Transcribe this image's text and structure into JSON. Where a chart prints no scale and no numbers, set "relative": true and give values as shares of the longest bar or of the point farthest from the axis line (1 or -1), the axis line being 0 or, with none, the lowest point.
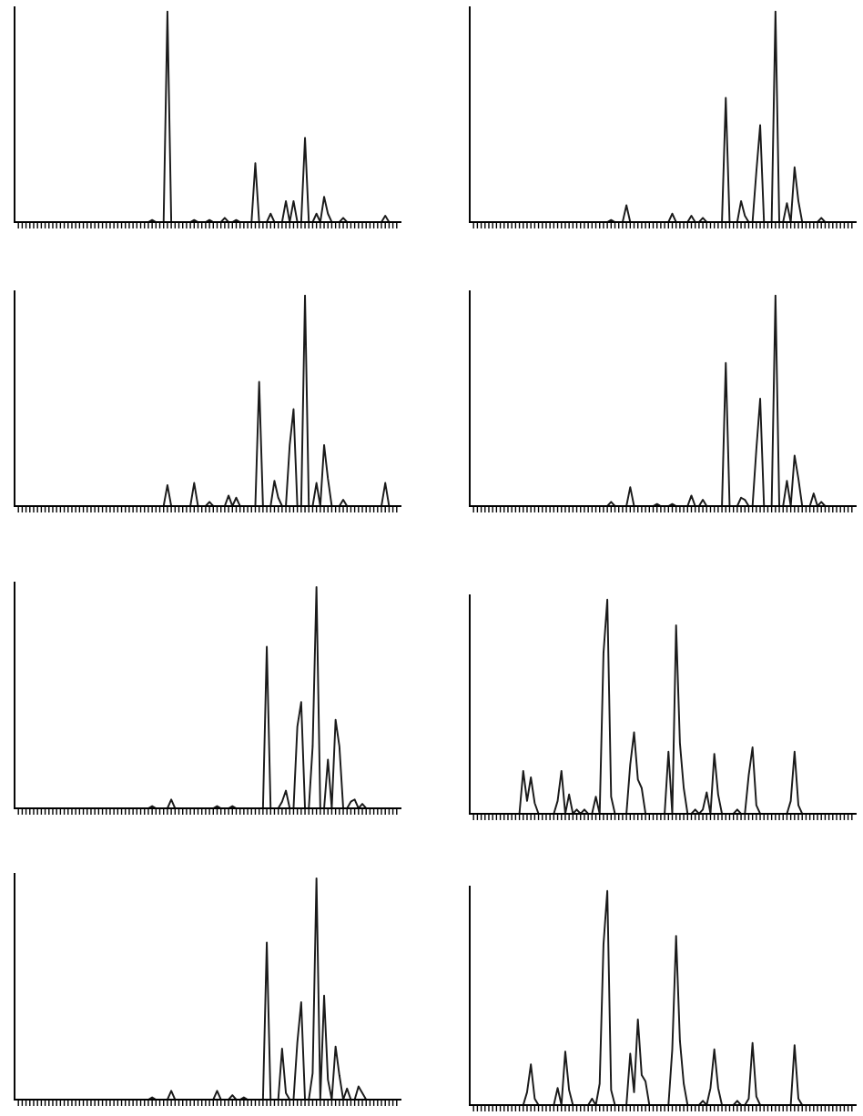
{
  "chart_data": [
    {
      "type": "line",
      "relative": true,
      "color": "#1a1a1a",
      "categories": [
        null,
        null,
        null,
        null,
        null,
        null,
        null,
        null,
        null,
        null,
        null,
        null,
        null,
        null,
        null,
        null,
        null,
        null,
        null,
        null,
        null,
        null,
        null,
        null,
        null,
        null,
        null,
        null,
        null,
        null,
        null,
        null,
        null,
        null,
        null,
        null,
        null,
        null,
        null,
        null,
        null,
        null,
        null,
        null,
        null,
        null,
        null,
        null,
        null,
        null,
        null,
        null,
        null,
        null,
        null,
        null,
        null,
        null,
        null,
        null,
        null,
        null,
        null,
        null,
        null,
        null,
        null,
        null,
        null,
        null,
        null,
        null,
        null,
        null,
        null,
        null,
        null,
        null,
        null,
        null,
        null,
        null,
        null,
        null,
        null,
        null,
        null,
        null,
        null,
        null,
        null,
        null,
        null,
        null,
        null,
        null,
        null,
        null,
        null,
        null
      ],
      "values": [
        0,
        0,
        0,
        0,
        0,
        0,
        0,
        0,
        0,
        0,
        0,
        0,
        0,
        0,
        0,
        0,
        0,
        0,
        0,
        0,
        0,
        0,
        0,
        0,
        0,
        0,
        0,
        0,
        0,
        0,
        0,
        0,
        0,
        0,
        0,
        0.01,
        0,
        0,
        0,
        1,
        0,
        0,
        0,
        0,
        0,
        0,
        0.01,
        0,
        0,
        0,
        0.01,
        0,
        0,
        0,
        0.02,
        0,
        0,
        0.01,
        0,
        0,
        0,
        0,
        0.28,
        0,
        0,
        0,
        0.04,
        0,
        0,
        0,
        0.1,
        0,
        0.1,
        0,
        0,
        0.4,
        0,
        0,
        0.04,
        0,
        0.12,
        0.04,
        0,
        0,
        0,
        0.02,
        0,
        0,
        0,
        0,
        0,
        0,
        0,
        0,
        0,
        0,
        0.03,
        0,
        0,
        0
      ]
    },
    {
      "type": "line",
      "relative": true,
      "color": "#1a1a1a",
      "categories": [
        null,
        null,
        null,
        null,
        null,
        null,
        null,
        null,
        null,
        null,
        null,
        null,
        null,
        null,
        null,
        null,
        null,
        null,
        null,
        null,
        null,
        null,
        null,
        null,
        null,
        null,
        null,
        null,
        null,
        null,
        null,
        null,
        null,
        null,
        null,
        null,
        null,
        null,
        null,
        null,
        null,
        null,
        null,
        null,
        null,
        null,
        null,
        null,
        null,
        null,
        null,
        null,
        null,
        null,
        null,
        null,
        null,
        null,
        null,
        null,
        null,
        null,
        null,
        null,
        null,
        null,
        null,
        null,
        null,
        null,
        null,
        null,
        null,
        null,
        null,
        null,
        null,
        null,
        null,
        null,
        null,
        null,
        null,
        null,
        null,
        null,
        null,
        null,
        null,
        null,
        null,
        null,
        null,
        null,
        null,
        null,
        null,
        null,
        null,
        null
      ],
      "values": [
        0,
        0,
        0,
        0,
        0,
        0,
        0,
        0,
        0,
        0,
        0,
        0,
        0,
        0,
        0,
        0,
        0,
        0,
        0,
        0,
        0,
        0,
        0,
        0,
        0,
        0,
        0,
        0,
        0,
        0,
        0,
        0,
        0,
        0,
        0,
        0,
        0.01,
        0,
        0,
        0,
        0.08,
        0,
        0,
        0,
        0,
        0,
        0,
        0,
        0,
        0,
        0,
        0,
        0.04,
        0,
        0,
        0,
        0,
        0.03,
        0,
        0,
        0.02,
        0,
        0,
        0,
        0,
        0,
        0.59,
        0,
        0,
        0,
        0.1,
        0.03,
        0,
        0,
        0.24,
        0.46,
        0,
        0,
        0,
        1,
        0,
        0,
        0.09,
        0,
        0.26,
        0.1,
        0,
        0,
        0,
        0,
        0,
        0.02,
        0,
        0,
        0,
        0,
        0,
        0,
        0,
        0
      ]
    },
    {
      "type": "line",
      "relative": true,
      "color": "#1a1a1a",
      "categories": [
        null,
        null,
        null,
        null,
        null,
        null,
        null,
        null,
        null,
        null,
        null,
        null,
        null,
        null,
        null,
        null,
        null,
        null,
        null,
        null,
        null,
        null,
        null,
        null,
        null,
        null,
        null,
        null,
        null,
        null,
        null,
        null,
        null,
        null,
        null,
        null,
        null,
        null,
        null,
        null,
        null,
        null,
        null,
        null,
        null,
        null,
        null,
        null,
        null,
        null,
        null,
        null,
        null,
        null,
        null,
        null,
        null,
        null,
        null,
        null,
        null,
        null,
        null,
        null,
        null,
        null,
        null,
        null,
        null,
        null,
        null,
        null,
        null,
        null,
        null,
        null,
        null,
        null,
        null,
        null,
        null,
        null,
        null,
        null,
        null,
        null,
        null,
        null,
        null,
        null,
        null,
        null,
        null,
        null,
        null,
        null,
        null,
        null,
        null,
        null
      ],
      "values": [
        0,
        0,
        0,
        0,
        0,
        0,
        0,
        0,
        0,
        0,
        0,
        0,
        0,
        0,
        0,
        0,
        0,
        0,
        0,
        0,
        0,
        0,
        0,
        0,
        0,
        0,
        0,
        0,
        0,
        0,
        0,
        0,
        0,
        0,
        0,
        0,
        0,
        0,
        0,
        0.1,
        0,
        0,
        0,
        0,
        0,
        0,
        0.11,
        0,
        0,
        0,
        0.02,
        0,
        0,
        0,
        0,
        0.05,
        0,
        0.04,
        0,
        0,
        0,
        0,
        0,
        0.59,
        0,
        0,
        0,
        0.12,
        0.04,
        0,
        0,
        0.29,
        0.46,
        0,
        0,
        1,
        0,
        0,
        0.11,
        0,
        0.29,
        0.13,
        0,
        0,
        0,
        0.03,
        0,
        0,
        0,
        0,
        0,
        0,
        0,
        0,
        0,
        0,
        0.11,
        0,
        0,
        0
      ]
    },
    {
      "type": "line",
      "relative": true,
      "color": "#1a1a1a",
      "categories": [
        null,
        null,
        null,
        null,
        null,
        null,
        null,
        null,
        null,
        null,
        null,
        null,
        null,
        null,
        null,
        null,
        null,
        null,
        null,
        null,
        null,
        null,
        null,
        null,
        null,
        null,
        null,
        null,
        null,
        null,
        null,
        null,
        null,
        null,
        null,
        null,
        null,
        null,
        null,
        null,
        null,
        null,
        null,
        null,
        null,
        null,
        null,
        null,
        null,
        null,
        null,
        null,
        null,
        null,
        null,
        null,
        null,
        null,
        null,
        null,
        null,
        null,
        null,
        null,
        null,
        null,
        null,
        null,
        null,
        null,
        null,
        null,
        null,
        null,
        null,
        null,
        null,
        null,
        null,
        null,
        null,
        null,
        null,
        null,
        null,
        null,
        null,
        null,
        null,
        null,
        null,
        null,
        null,
        null,
        null,
        null,
        null,
        null,
        null,
        null
      ],
      "values": [
        0,
        0,
        0,
        0,
        0,
        0,
        0,
        0,
        0,
        0,
        0,
        0,
        0,
        0,
        0,
        0,
        0,
        0,
        0,
        0,
        0,
        0,
        0,
        0,
        0,
        0,
        0,
        0,
        0,
        0,
        0,
        0,
        0,
        0,
        0,
        0,
        0.02,
        0,
        0,
        0,
        0,
        0.09,
        0,
        0,
        0,
        0,
        0,
        0,
        0.01,
        0,
        0,
        0,
        0.01,
        0,
        0,
        0,
        0,
        0.05,
        0,
        0,
        0.03,
        0,
        0,
        0,
        0,
        0,
        0.68,
        0,
        0,
        0,
        0.04,
        0.03,
        0,
        0,
        0.27,
        0.51,
        0,
        0,
        0,
        1,
        0,
        0,
        0.12,
        0,
        0.24,
        0.13,
        0,
        0,
        0,
        0.06,
        0,
        0.02,
        0,
        0,
        0,
        0,
        0,
        0,
        0,
        0
      ]
    },
    {
      "type": "line",
      "relative": true,
      "color": "#1a1a1a",
      "categories": [
        null,
        null,
        null,
        null,
        null,
        null,
        null,
        null,
        null,
        null,
        null,
        null,
        null,
        null,
        null,
        null,
        null,
        null,
        null,
        null,
        null,
        null,
        null,
        null,
        null,
        null,
        null,
        null,
        null,
        null,
        null,
        null,
        null,
        null,
        null,
        null,
        null,
        null,
        null,
        null,
        null,
        null,
        null,
        null,
        null,
        null,
        null,
        null,
        null,
        null,
        null,
        null,
        null,
        null,
        null,
        null,
        null,
        null,
        null,
        null,
        null,
        null,
        null,
        null,
        null,
        null,
        null,
        null,
        null,
        null,
        null,
        null,
        null,
        null,
        null,
        null,
        null,
        null,
        null,
        null,
        null,
        null,
        null,
        null,
        null,
        null,
        null,
        null,
        null,
        null,
        null,
        null,
        null,
        null,
        null,
        null,
        null,
        null,
        null,
        null
      ],
      "values": [
        0,
        0,
        0,
        0,
        0,
        0,
        0,
        0,
        0,
        0,
        0,
        0,
        0,
        0,
        0,
        0,
        0,
        0,
        0,
        0,
        0,
        0,
        0,
        0,
        0,
        0,
        0,
        0,
        0,
        0,
        0,
        0,
        0,
        0,
        0,
        0.01,
        0,
        0,
        0,
        0,
        0.04,
        0,
        0,
        0,
        0,
        0,
        0,
        0,
        0,
        0,
        0,
        0,
        0.01,
        0,
        0,
        0,
        0.01,
        0,
        0,
        0,
        0,
        0,
        0,
        0,
        0,
        0.73,
        0,
        0,
        0,
        0.03,
        0.08,
        0,
        0,
        0.37,
        0.48,
        0,
        0,
        0.28,
        1,
        0,
        0,
        0.22,
        0,
        0.4,
        0.28,
        0,
        0,
        0.03,
        0.04,
        0,
        0.02,
        0,
        0,
        0,
        0,
        0,
        0,
        0,
        0,
        0
      ]
    },
    {
      "type": "line",
      "relative": true,
      "color": "#1a1a1a",
      "categories": [
        null,
        null,
        null,
        null,
        null,
        null,
        null,
        null,
        null,
        null,
        null,
        null,
        null,
        null,
        null,
        null,
        null,
        null,
        null,
        null,
        null,
        null,
        null,
        null,
        null,
        null,
        null,
        null,
        null,
        null,
        null,
        null,
        null,
        null,
        null,
        null,
        null,
        null,
        null,
        null,
        null,
        null,
        null,
        null,
        null,
        null,
        null,
        null,
        null,
        null,
        null,
        null,
        null,
        null,
        null,
        null,
        null,
        null,
        null,
        null,
        null,
        null,
        null,
        null,
        null,
        null,
        null,
        null,
        null,
        null,
        null,
        null,
        null,
        null,
        null,
        null,
        null,
        null,
        null,
        null,
        null,
        null,
        null,
        null,
        null,
        null,
        null,
        null,
        null,
        null,
        null,
        null,
        null,
        null,
        null,
        null,
        null,
        null,
        null,
        null
      ],
      "values": [
        0,
        0,
        0,
        0,
        0,
        0,
        0,
        0,
        0,
        0,
        0,
        0,
        0,
        0.2,
        0.06,
        0.17,
        0.05,
        0,
        0,
        0,
        0,
        0,
        0.06,
        0.2,
        0,
        0.09,
        0,
        0.02,
        0,
        0.02,
        0,
        0,
        0.08,
        0,
        0.75,
        1,
        0.08,
        0,
        0,
        0,
        0,
        0.23,
        0.38,
        0.16,
        0.12,
        0,
        0,
        0,
        0,
        0,
        0,
        0.29,
        0,
        0.88,
        0.33,
        0.12,
        0,
        0,
        0.02,
        0,
        0.02,
        0.1,
        0,
        0.28,
        0.09,
        0,
        0,
        0,
        0,
        0.02,
        0,
        0,
        0.18,
        0.31,
        0.04,
        0,
        0,
        0,
        0,
        0,
        0,
        0,
        0,
        0.06,
        0.29,
        0.04,
        0,
        0,
        0,
        0,
        0,
        0,
        0,
        0,
        0,
        0,
        0,
        0,
        0,
        0
      ]
    },
    {
      "type": "line",
      "relative": true,
      "color": "#1a1a1a",
      "categories": [
        null,
        null,
        null,
        null,
        null,
        null,
        null,
        null,
        null,
        null,
        null,
        null,
        null,
        null,
        null,
        null,
        null,
        null,
        null,
        null,
        null,
        null,
        null,
        null,
        null,
        null,
        null,
        null,
        null,
        null,
        null,
        null,
        null,
        null,
        null,
        null,
        null,
        null,
        null,
        null,
        null,
        null,
        null,
        null,
        null,
        null,
        null,
        null,
        null,
        null,
        null,
        null,
        null,
        null,
        null,
        null,
        null,
        null,
        null,
        null,
        null,
        null,
        null,
        null,
        null,
        null,
        null,
        null,
        null,
        null,
        null,
        null,
        null,
        null,
        null,
        null,
        null,
        null,
        null,
        null,
        null,
        null,
        null,
        null,
        null,
        null,
        null,
        null,
        null,
        null,
        null,
        null,
        null,
        null,
        null,
        null,
        null,
        null,
        null,
        null
      ],
      "values": [
        0,
        0,
        0,
        0,
        0,
        0,
        0,
        0,
        0,
        0,
        0,
        0,
        0,
        0,
        0,
        0,
        0,
        0,
        0,
        0,
        0,
        0,
        0,
        0,
        0,
        0,
        0,
        0,
        0,
        0,
        0,
        0,
        0,
        0,
        0,
        0.01,
        0,
        0,
        0,
        0,
        0.04,
        0,
        0,
        0,
        0,
        0,
        0,
        0,
        0,
        0,
        0,
        0,
        0.04,
        0,
        0,
        0,
        0.02,
        0,
        0,
        0.01,
        0,
        0,
        0,
        0,
        0,
        0.71,
        0,
        0,
        0,
        0.23,
        0.03,
        0,
        0,
        0.26,
        0.44,
        0,
        0,
        0.12,
        1,
        0,
        0.47,
        0.09,
        0,
        0.24,
        0.11,
        0,
        0.05,
        0,
        0,
        0.06,
        0.03,
        0,
        0,
        0,
        0,
        0,
        0,
        0,
        0,
        0
      ]
    },
    {
      "type": "line",
      "relative": true,
      "color": "#1a1a1a",
      "categories": [
        null,
        null,
        null,
        null,
        null,
        null,
        null,
        null,
        null,
        null,
        null,
        null,
        null,
        null,
        null,
        null,
        null,
        null,
        null,
        null,
        null,
        null,
        null,
        null,
        null,
        null,
        null,
        null,
        null,
        null,
        null,
        null,
        null,
        null,
        null,
        null,
        null,
        null,
        null,
        null,
        null,
        null,
        null,
        null,
        null,
        null,
        null,
        null,
        null,
        null,
        null,
        null,
        null,
        null,
        null,
        null,
        null,
        null,
        null,
        null,
        null,
        null,
        null,
        null,
        null,
        null,
        null,
        null,
        null,
        null,
        null,
        null,
        null,
        null,
        null,
        null,
        null,
        null,
        null,
        null,
        null,
        null,
        null,
        null,
        null,
        null,
        null,
        null,
        null,
        null,
        null,
        null,
        null,
        null,
        null,
        null,
        null,
        null,
        null,
        null
      ],
      "values": [
        0,
        0,
        0,
        0,
        0,
        0,
        0,
        0,
        0,
        0,
        0,
        0,
        0,
        0,
        0.06,
        0.19,
        0.03,
        0,
        0,
        0,
        0,
        0,
        0.08,
        0,
        0.25,
        0.07,
        0,
        0,
        0,
        0,
        0,
        0.03,
        0,
        0.1,
        0.75,
        1,
        0.07,
        0,
        0,
        0,
        0,
        0.24,
        0.06,
        0.4,
        0.14,
        0.11,
        0,
        0,
        0,
        0,
        0,
        0,
        0.26,
        0.79,
        0.3,
        0.1,
        0,
        0,
        0,
        0,
        0.02,
        0,
        0.08,
        0.26,
        0.08,
        0,
        0,
        0,
        0,
        0.02,
        0,
        0,
        0.03,
        0.29,
        0.04,
        0,
        0,
        0,
        0,
        0,
        0,
        0,
        0,
        0,
        0.28,
        0.03,
        0,
        0,
        0,
        0,
        0,
        0,
        0,
        0,
        0,
        0,
        0,
        0,
        0,
        0
      ]
    }
  ]
}
